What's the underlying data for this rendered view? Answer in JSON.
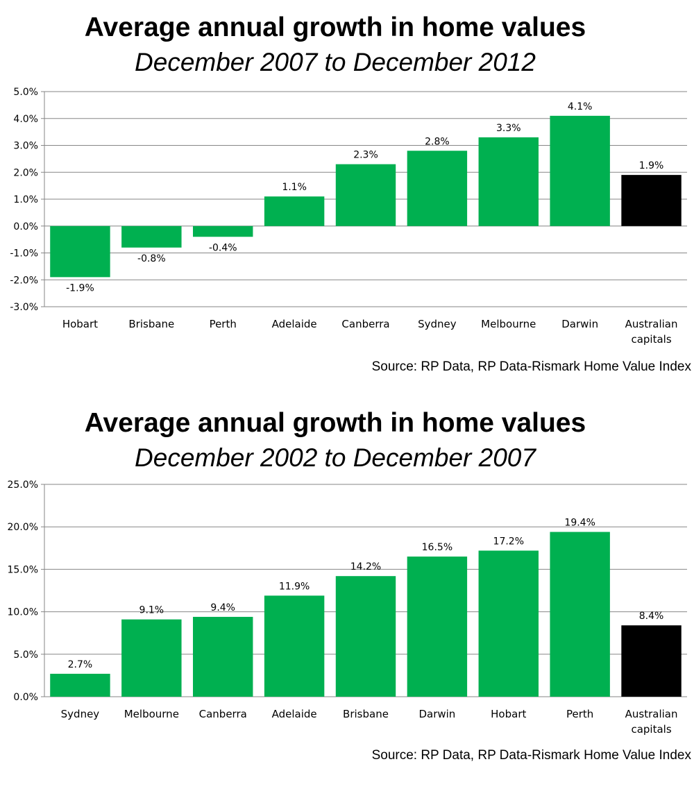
{
  "charts": [
    {
      "title": "Average annual growth in home values",
      "subtitle": "December 2007 to December 2012",
      "source": "Source: RP Data, RP Data-Rismark Home Value Index"
    },
    {
      "title": "Average annual growth in home values",
      "subtitle": "December 2002 to December 2007",
      "source": "Source: RP Data, RP Data-Rismark Home Value Index"
    }
  ],
  "colors": {
    "bar": "#00b050",
    "highlight": "#000000",
    "grid": "#868686"
  },
  "chart_data": [
    {
      "type": "bar",
      "title": "Average annual growth in home values",
      "subtitle": "December 2007 to December 2012",
      "categories": [
        "Hobart",
        "Brisbane",
        "Perth",
        "Adelaide",
        "Canberra",
        "Sydney",
        "Melbourne",
        "Darwin",
        "Australian capitals"
      ],
      "values": [
        -1.9,
        -0.8,
        -0.4,
        1.1,
        2.3,
        2.8,
        3.3,
        4.1,
        1.9
      ],
      "data_labels": [
        "-1.9%",
        "-0.8%",
        "-0.4%",
        "1.1%",
        "2.3%",
        "2.8%",
        "3.3%",
        "4.1%",
        "1.9%"
      ],
      "highlight_index": 8,
      "ylim": [
        -3,
        5
      ],
      "yticks": [
        "-3.0%",
        "-2.0%",
        "-1.0%",
        "0.0%",
        "1.0%",
        "2.0%",
        "3.0%",
        "4.0%",
        "5.0%"
      ],
      "ytick_values": [
        -3,
        -2,
        -1,
        0,
        1,
        2,
        3,
        4,
        5
      ],
      "grid": true,
      "xlabel": "",
      "ylabel": ""
    },
    {
      "type": "bar",
      "title": "Average annual growth in home values",
      "subtitle": "December 2002 to December 2007",
      "categories": [
        "Sydney",
        "Melbourne",
        "Canberra",
        "Adelaide",
        "Brisbane",
        "Darwin",
        "Hobart",
        "Perth",
        "Australian capitals"
      ],
      "values": [
        2.7,
        9.1,
        9.4,
        11.9,
        14.2,
        16.5,
        17.2,
        19.4,
        8.4
      ],
      "data_labels": [
        "2.7%",
        "9.1%",
        "9.4%",
        "11.9%",
        "14.2%",
        "16.5%",
        "17.2%",
        "19.4%",
        "8.4%"
      ],
      "highlight_index": 8,
      "ylim": [
        0,
        25
      ],
      "yticks": [
        "0.0%",
        "5.0%",
        "10.0%",
        "15.0%",
        "20.0%",
        "25.0%"
      ],
      "ytick_values": [
        0,
        5,
        10,
        15,
        20,
        25
      ],
      "grid": true,
      "xlabel": "",
      "ylabel": ""
    }
  ]
}
